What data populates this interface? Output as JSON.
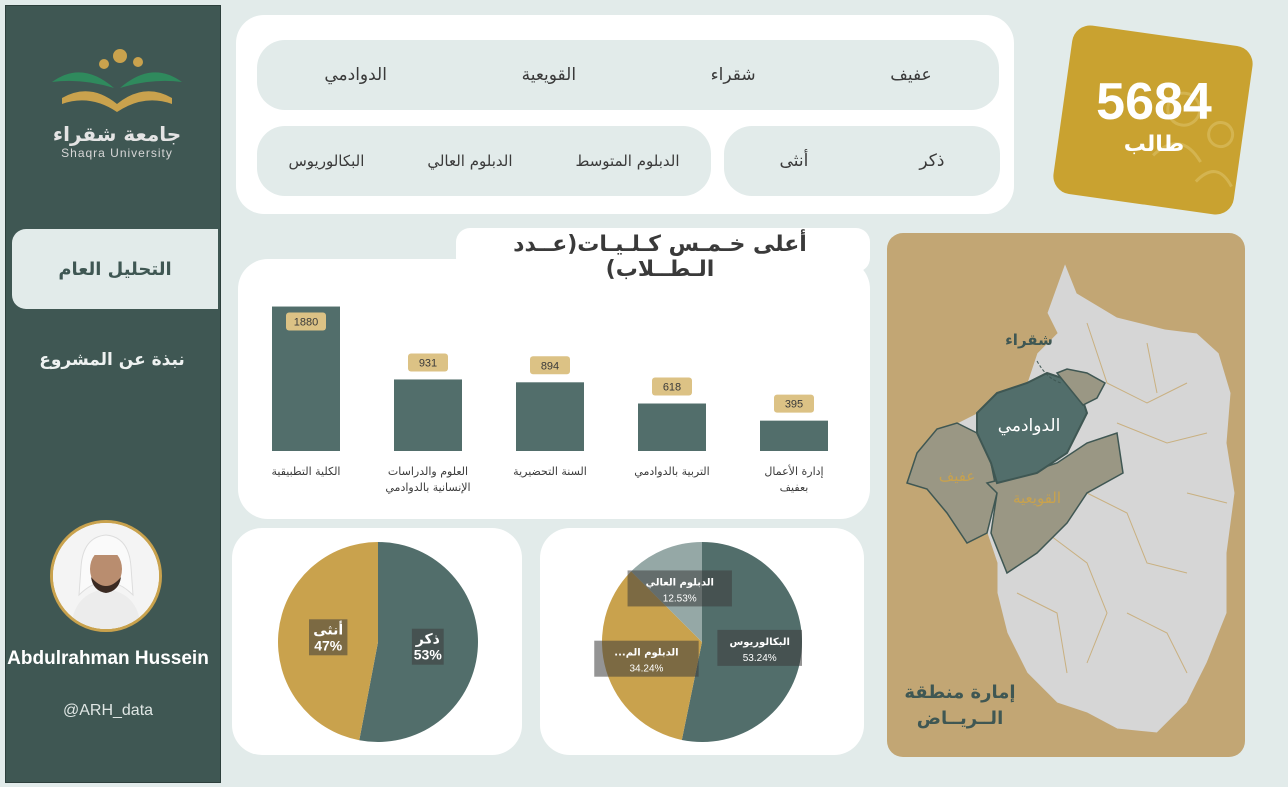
{
  "sidebar": {
    "logo_text": "جامعة شقراء",
    "logo_sub": "Shaqra University",
    "nav_active": "التحليل العام",
    "nav_about": "نبذة عن المشروع",
    "author_name": "Abdulrahman Hussein",
    "author_handle": "@ARH_data"
  },
  "filters": {
    "cities": [
      "عفيف",
      "شقراء",
      "القويعية",
      "الدوادمي"
    ],
    "genders": [
      "ذكر",
      "أنثى"
    ],
    "degrees": [
      "الدبلوم المتوسط",
      "الدبلوم العالي",
      "البكالوريوس"
    ]
  },
  "kpi": {
    "value": "5684",
    "label": "طالب"
  },
  "bar_chart": {
    "title": "أعلى خـمـس كـلـيـات(عــدد الـطــلاب)"
  },
  "map": {
    "labels": {
      "shaqra": "شقراء",
      "dawadmi": "الدوادمي",
      "afif": "عفيف",
      "quwayiyah": "القويعية"
    },
    "caption_line1": "إمارة منطقة",
    "caption_line2": "الــريــاض"
  },
  "colors": {
    "teal": "#526e6b",
    "gold": "#c9a24d",
    "label_bg": "#dcc285",
    "map_bg": "#c2a674",
    "map_gray": "#d6d6d6",
    "map_highlight": "#9a9784"
  },
  "chart_data": [
    {
      "type": "bar",
      "title": "أعلى خـمـس كـلـيـات(عــدد الـطــلاب)",
      "categories": [
        "الكلية التطبيقية",
        "العلوم والدراسات الإنسانية بالدوادمي",
        "السنة التحضيرية",
        "التربية بالدوادمي",
        "إدارة الأعمال بعفيف"
      ],
      "values": [
        1880,
        931,
        894,
        618,
        395
      ],
      "data_labels": [
        "1880",
        "931",
        "894",
        "618",
        "395"
      ],
      "ylim": [
        0,
        1900
      ]
    },
    {
      "type": "pie",
      "slices": [
        {
          "name": "ذكر",
          "value": 53,
          "label": "53%",
          "color": "#526e6b"
        },
        {
          "name": "أنثى",
          "value": 47,
          "label": "47%",
          "color": "#c9a24d"
        }
      ]
    },
    {
      "type": "pie",
      "slices": [
        {
          "name": "البكالوريوس",
          "value": 53.24,
          "label": "53.24%",
          "color": "#526e6b"
        },
        {
          "name": "الدبلوم الم...",
          "value": 34.24,
          "label": "34.24%",
          "color": "#c9a24d"
        },
        {
          "name": "الدبلوم العالي",
          "value": 12.53,
          "label": "12.53%",
          "color": "#95a8a6"
        }
      ]
    }
  ]
}
